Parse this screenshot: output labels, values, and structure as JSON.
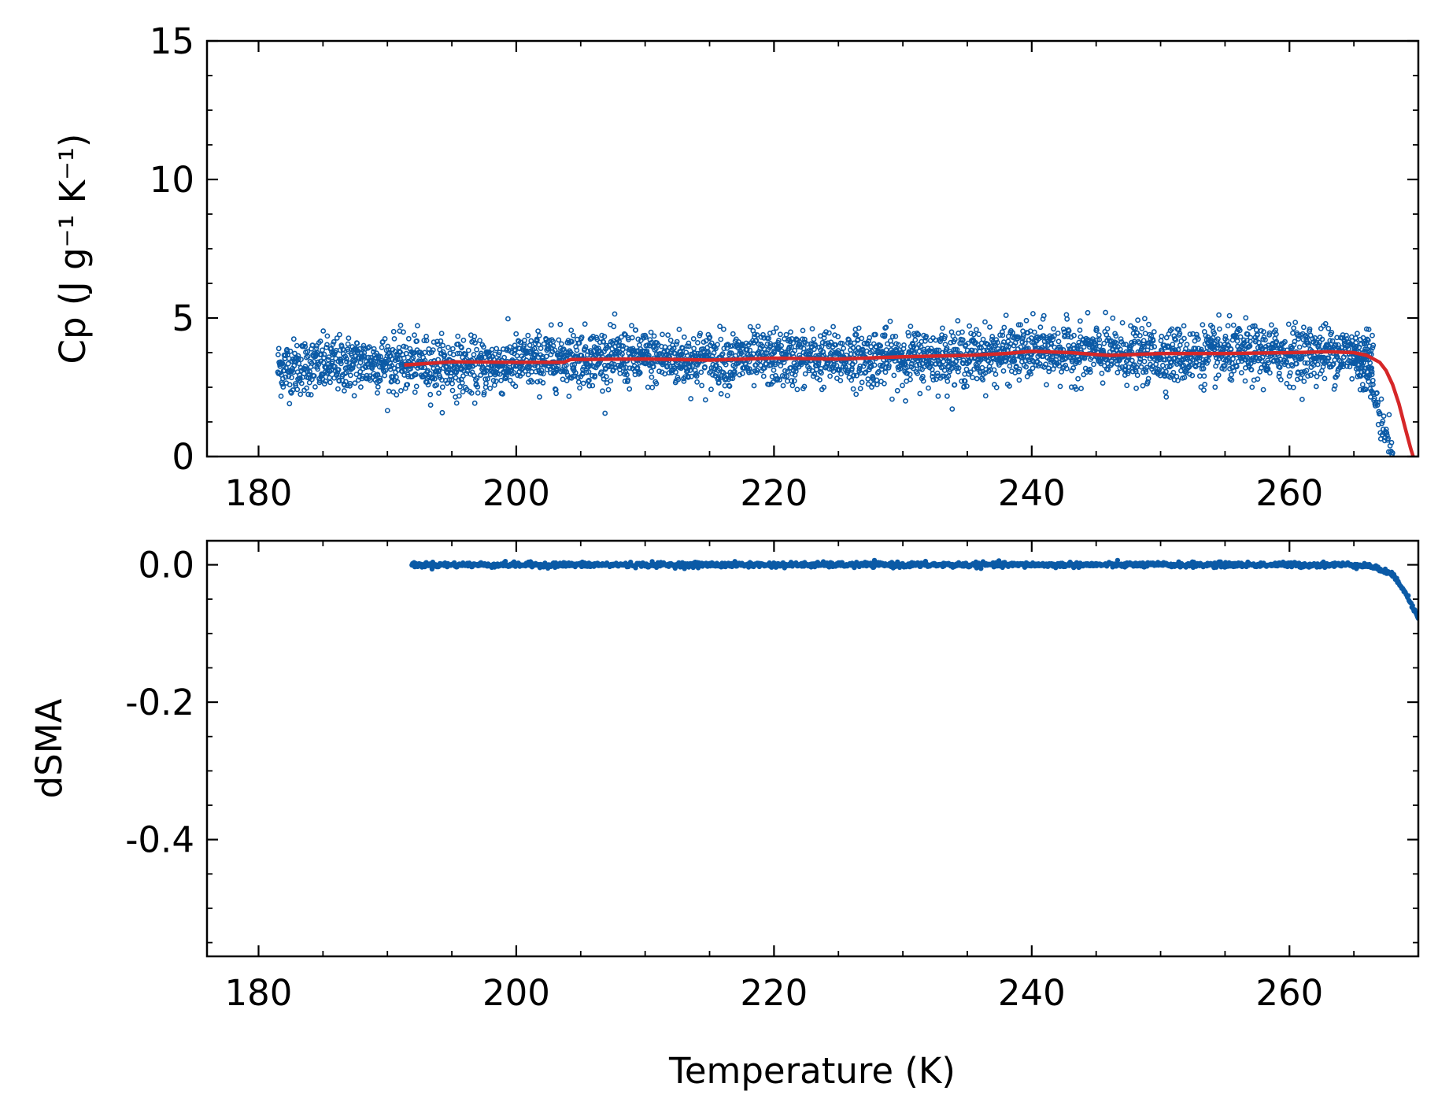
{
  "colors": {
    "scatter": "#0b5aa6",
    "fit_line": "#d62728",
    "axes": "#000000",
    "background": "#ffffff"
  },
  "chart_data": [
    {
      "id": "top",
      "type": "scatter",
      "title": "",
      "xlabel": "",
      "ylabel": "Cp (J g⁻¹ K⁻¹)",
      "xlim": [
        176,
        270
      ],
      "ylim": [
        0,
        15
      ],
      "xticks": [
        180,
        200,
        220,
        240,
        260
      ],
      "xtick_labels": [
        "180",
        "200",
        "220",
        "240",
        "260"
      ],
      "yticks": [
        0,
        5,
        10,
        15
      ],
      "ytick_labels": [
        "0",
        "5",
        "10",
        "15"
      ],
      "grid": false,
      "legend": "none",
      "series": [
        {
          "kind": "scatter",
          "marker": "open-circle",
          "color": "#0b5aa6",
          "x_range": [
            181.5,
            266.5
          ],
          "mean_profile": [
            [
              181.5,
              3.2
            ],
            [
              190,
              3.4
            ],
            [
              197,
              3.2
            ],
            [
              204,
              3.6
            ],
            [
              215,
              3.5
            ],
            [
              225,
              3.55
            ],
            [
              235,
              3.6
            ],
            [
              240,
              3.8
            ],
            [
              250,
              3.65
            ],
            [
              265,
              3.75
            ]
          ],
          "scatter_sd": 0.5,
          "count": 3500,
          "tail": [
            [
              265,
              3.6
            ],
            [
              266,
              3.0
            ],
            [
              266.5,
              2.3
            ],
            [
              267,
              1.5
            ],
            [
              267.5,
              0.8
            ],
            [
              268,
              0.2
            ]
          ]
        },
        {
          "kind": "line",
          "color": "#d62728",
          "points": [
            [
              191.3,
              3.3
            ],
            [
              195,
              3.42
            ],
            [
              200,
              3.4
            ],
            [
              203.7,
              3.4
            ],
            [
              204.2,
              3.5
            ],
            [
              210,
              3.52
            ],
            [
              215,
              3.48
            ],
            [
              220,
              3.55
            ],
            [
              225,
              3.52
            ],
            [
              230,
              3.6
            ],
            [
              235,
              3.65
            ],
            [
              238,
              3.72
            ],
            [
              240,
              3.8
            ],
            [
              243,
              3.75
            ],
            [
              246,
              3.65
            ],
            [
              250,
              3.72
            ],
            [
              255,
              3.72
            ],
            [
              260,
              3.75
            ],
            [
              263,
              3.78
            ],
            [
              265,
              3.75
            ],
            [
              266,
              3.65
            ],
            [
              267,
              3.4
            ],
            [
              267.5,
              3.1
            ],
            [
              268,
              2.6
            ],
            [
              268.5,
              1.9
            ],
            [
              269,
              1.0
            ],
            [
              269.4,
              0.3
            ],
            [
              269.6,
              0.0
            ]
          ]
        }
      ]
    },
    {
      "id": "bottom",
      "type": "line",
      "title": "",
      "xlabel": "Temperature (K)",
      "ylabel": "dSMA",
      "xlim": [
        176,
        270
      ],
      "ylim": [
        -0.57,
        0.035
      ],
      "xticks": [
        180,
        200,
        220,
        240,
        260
      ],
      "xtick_labels": [
        "180",
        "200",
        "220",
        "240",
        "260"
      ],
      "yticks": [
        0.0,
        -0.2,
        -0.4
      ],
      "ytick_labels": [
        "0.0",
        "-0.2",
        "-0.4"
      ],
      "grid": false,
      "legend": "none",
      "series": [
        {
          "kind": "dots",
          "color": "#0b5aa6",
          "points": [
            [
              191.9,
              0.0
            ],
            [
              200,
              0.0
            ],
            [
              210,
              0.0
            ],
            [
              220,
              0.0
            ],
            [
              230,
              0.0
            ],
            [
              240,
              0.0
            ],
            [
              250,
              0.0
            ],
            [
              260,
              0.0
            ],
            [
              264,
              0.0
            ],
            [
              265.5,
              0.0
            ],
            [
              266.5,
              -0.003
            ],
            [
              267.5,
              -0.01
            ],
            [
              268.3,
              -0.02
            ],
            [
              269,
              -0.04
            ],
            [
              269.5,
              -0.06
            ],
            [
              270,
              -0.075
            ]
          ]
        }
      ]
    }
  ]
}
